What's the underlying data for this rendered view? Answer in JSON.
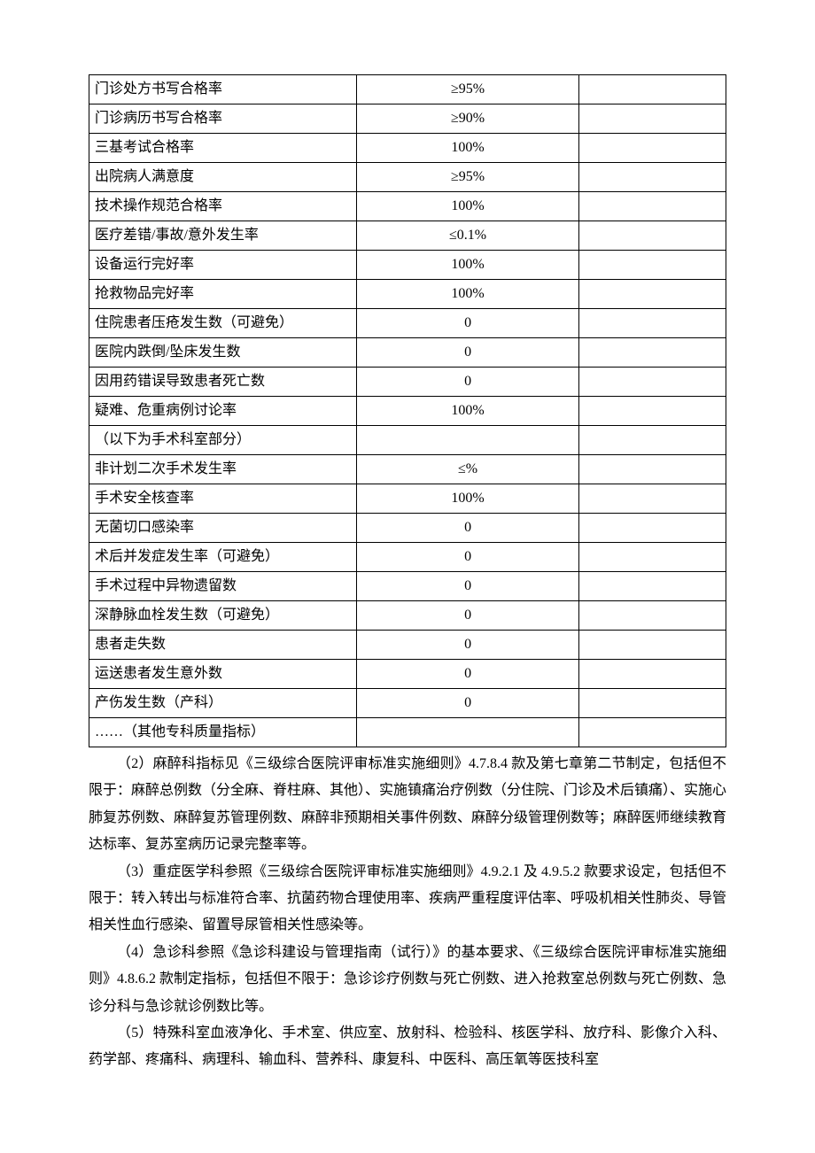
{
  "table": {
    "rows": [
      {
        "metric": "门诊处方书写合格率",
        "target": "≥95%",
        "note": ""
      },
      {
        "metric": "门诊病历书写合格率",
        "target": "≥90%",
        "note": ""
      },
      {
        "metric": "三基考试合格率",
        "target": "100%",
        "note": ""
      },
      {
        "metric": "出院病人满意度",
        "target": "≥95%",
        "note": ""
      },
      {
        "metric": "技术操作规范合格率",
        "target": "100%",
        "note": ""
      },
      {
        "metric": "医疗差错/事故/意外发生率",
        "target": "≤0.1%",
        "note": ""
      },
      {
        "metric": "设备运行完好率",
        "target": "100%",
        "note": ""
      },
      {
        "metric": "抢救物品完好率",
        "target": "100%",
        "note": ""
      },
      {
        "metric": "住院患者压疮发生数（可避免）",
        "target": "0",
        "note": ""
      },
      {
        "metric": "医院内跌倒/坠床发生数",
        "target": "0",
        "note": ""
      },
      {
        "metric": "因用药错误导致患者死亡数",
        "target": "0",
        "note": ""
      },
      {
        "metric": "疑难、危重病例讨论率",
        "target": "100%",
        "note": ""
      },
      {
        "metric": "（以下为手术科室部分）",
        "target": "",
        "note": ""
      },
      {
        "metric": "非计划二次手术发生率",
        "target": "≤%",
        "note": ""
      },
      {
        "metric": "手术安全核查率",
        "target": "100%",
        "note": ""
      },
      {
        "metric": "无菌切口感染率",
        "target": "0",
        "note": ""
      },
      {
        "metric": "术后并发症发生率（可避免）",
        "target": "0",
        "note": ""
      },
      {
        "metric": "手术过程中异物遗留数",
        "target": "0",
        "note": ""
      },
      {
        "metric": "深静脉血栓发生数（可避免）",
        "target": "0",
        "note": ""
      },
      {
        "metric": "患者走失数",
        "target": "0",
        "note": ""
      },
      {
        "metric": "运送患者发生意外数",
        "target": "0",
        "note": ""
      },
      {
        "metric": "产伤发生数（产科）",
        "target": "0",
        "note": ""
      },
      {
        "metric": "……（其他专科质量指标）",
        "target": "",
        "note": ""
      }
    ]
  },
  "paragraphs": [
    "（2）麻醉科指标见《三级综合医院评审标准实施细则》4.7.8.4 款及第七章第二节制定，包括但不限于：麻醉总例数（分全麻、脊柱麻、其他）、实施镇痛治疗例数（分住院、门诊及术后镇痛）、实施心肺复苏例数、麻醉复苏管理例数、麻醉非预期相关事件例数、麻醉分级管理例数等；麻醉医师继续教育达标率、复苏室病历记录完整率等。",
    "（3）重症医学科参照《三级综合医院评审标准实施细则》4.9.2.1 及 4.9.5.2 款要求设定，包括但不限于：转入转出与标准符合率、抗菌药物合理使用率、疾病严重程度评估率、呼吸机相关性肺炎、导管相关性血行感染、留置导尿管相关性感染等。",
    "（4）急诊科参照《急诊科建设与管理指南（试行）》的基本要求、《三级综合医院评审标准实施细则》4.8.6.2 款制定指标，包括但不限于：急诊诊疗例数与死亡例数、进入抢救室总例数与死亡例数、急诊分科与急诊就诊例数比等。",
    "（5）特殊科室血液净化、手术室、供应室、放射科、检验科、核医学科、放疗科、影像介入科、药学部、疼痛科、病理科、输血科、营养科、康复科、中医科、高压氧等医技科室"
  ]
}
